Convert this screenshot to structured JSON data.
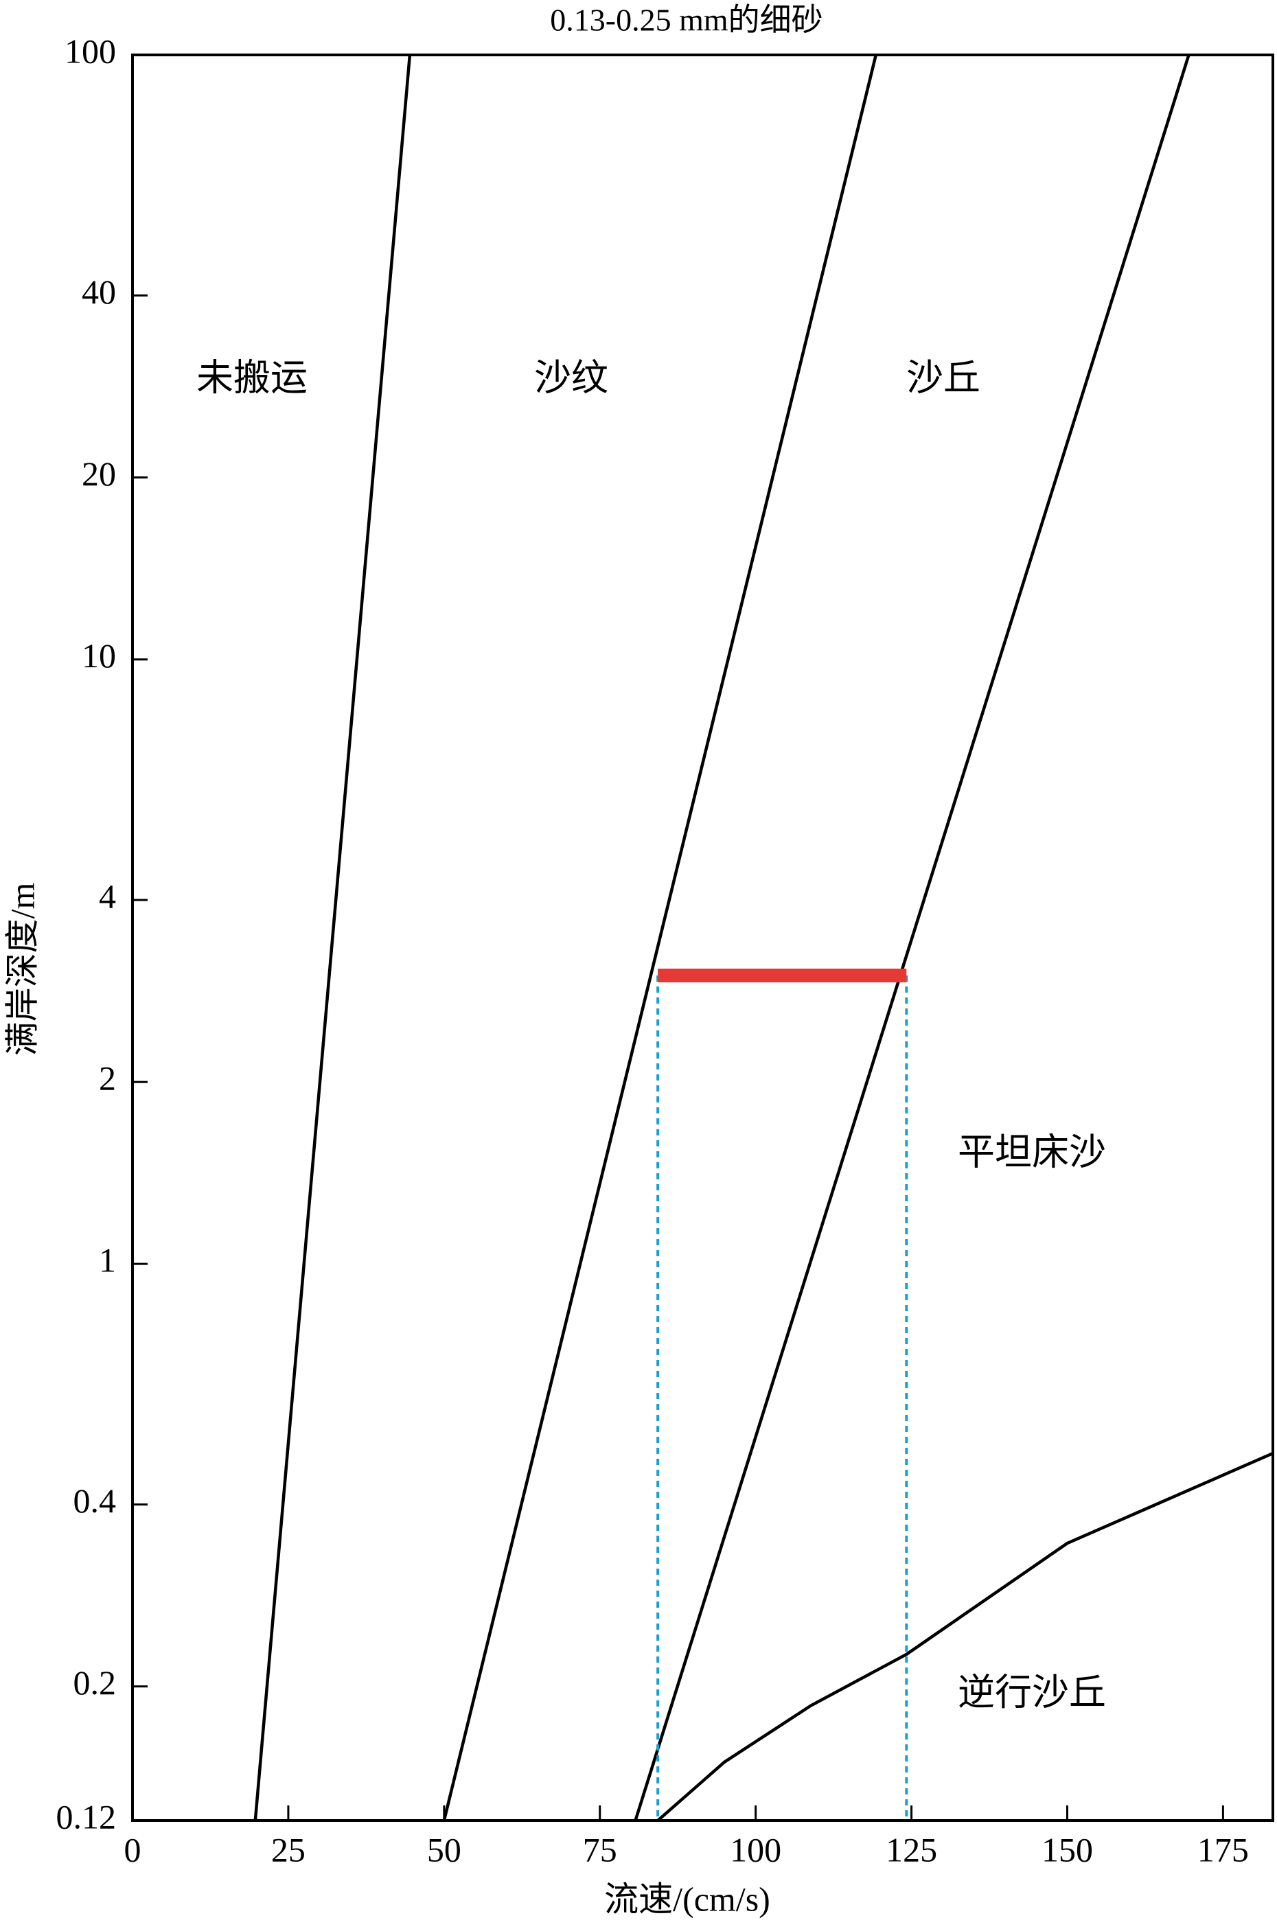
{
  "chart_data": {
    "type": "line",
    "title": "0.13-0.25 mm的细砂",
    "x_label": "流速/(cm/s)",
    "y_label": "满岸深度/m",
    "xlim": [
      0,
      183
    ],
    "ylim": [
      0.12,
      100
    ],
    "ylog": true,
    "xticks": [
      0,
      25,
      50,
      75,
      100,
      125,
      150,
      175
    ],
    "yticks": [
      0.12,
      0.2,
      0.4,
      1,
      2,
      4,
      10,
      20,
      40,
      100
    ],
    "series": [
      {
        "color": "#000000",
        "x": [
          19.7,
          44.5
        ],
        "values": [
          0.12,
          100
        ]
      },
      {
        "color": "#000000",
        "x": [
          50,
          119.3
        ],
        "values": [
          0.12,
          100
        ]
      },
      {
        "color": "#000000",
        "x": [
          80.7,
          169.5
        ],
        "values": [
          0.12,
          100
        ]
      },
      {
        "color": "#000000",
        "x": [
          84.3,
          95,
          108.9,
          124.2,
          150,
          183
        ],
        "values": [
          0.12,
          0.15,
          0.186,
          0.226,
          0.345,
          0.486
        ]
      }
    ],
    "highlight": {
      "color": "#e53935",
      "guide_color": "#1a9fd0",
      "x": [
        84.3,
        124.2
      ],
      "values": [
        3,
        3
      ]
    },
    "annotations": [
      "未搬运",
      "沙纹",
      "沙丘",
      "平坦床沙",
      "逆行沙丘"
    ]
  }
}
